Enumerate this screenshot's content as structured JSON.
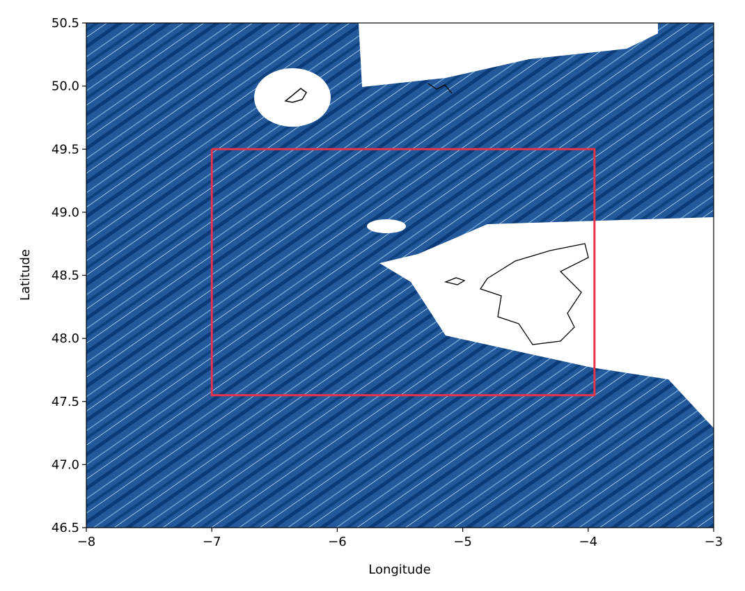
{
  "chart_data": {
    "type": "line",
    "xlabel": "Longitude",
    "ylabel": "Latitude",
    "xlim": [
      -8,
      -3
    ],
    "ylim": [
      46.5,
      50.5
    ],
    "xticks": [
      {
        "value": -8,
        "label": "−8"
      },
      {
        "value": -7,
        "label": "−7"
      },
      {
        "value": -6,
        "label": "−6"
      },
      {
        "value": -5,
        "label": "−5"
      },
      {
        "value": -4,
        "label": "−4"
      },
      {
        "value": -3,
        "label": "−3"
      }
    ],
    "yticks": [
      46.5,
      {
        "value": 47,
        "label": "47.0"
      },
      47.5,
      {
        "value": 48,
        "label": "48.0"
      },
      48.5,
      {
        "value": 49,
        "label": "49.0"
      },
      49.5,
      {
        "value": 50,
        "label": "50.0"
      },
      50.5
    ],
    "series": [
      {
        "color": "#e8344a",
        "x": [
          -7,
          -3.95,
          -3.95,
          -7,
          -7
        ],
        "values": [
          49.5,
          49.5,
          47.55,
          47.55,
          49.5
        ]
      }
    ]
  }
}
